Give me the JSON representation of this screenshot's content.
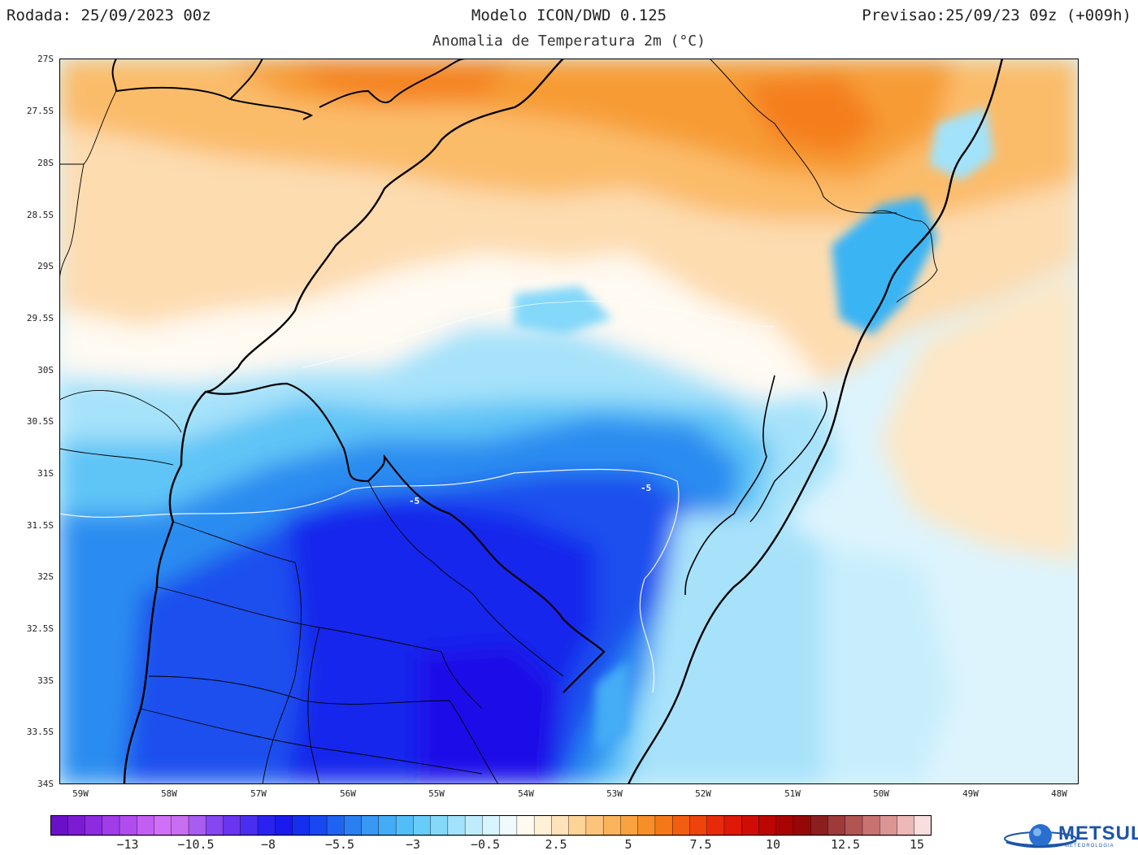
{
  "header": {
    "run": "Rodada: 25/09/2023 00z",
    "model": "Modelo ICON/DWD 0.125",
    "forecast": "Previsao:25/09/23 09z (+009h)",
    "subtitle": "Anomalia de Temperatura 2m (°C)"
  },
  "axes": {
    "lat_labels": [
      "27S",
      "27.5S",
      "28S",
      "28.5S",
      "29S",
      "29.5S",
      "30S",
      "30.5S",
      "31S",
      "31.5S",
      "32S",
      "32.5S",
      "33S",
      "33.5S",
      "34S"
    ],
    "lon_labels": [
      "59W",
      "58W",
      "57W",
      "56W",
      "55W",
      "54W",
      "53W",
      "52W",
      "51W",
      "50W",
      "49W",
      "48W"
    ]
  },
  "contour_labels": [
    "-5",
    "-5"
  ],
  "colorbar": {
    "colors": [
      "#6a10c8",
      "#7c1ad6",
      "#8e2ae0",
      "#a03ce8",
      "#b24cef",
      "#c35ef4",
      "#d070f6",
      "#c86ef0",
      "#a85cf0",
      "#8646f0",
      "#6a34f0",
      "#4a2ef0",
      "#2a22f0",
      "#1a1aee",
      "#1430ee",
      "#1848f0",
      "#1e64f0",
      "#2a80f2",
      "#3898f4",
      "#44acf6",
      "#52bef8",
      "#68ccf8",
      "#84d8fa",
      "#a2e2fb",
      "#bfecfc",
      "#d8f4fd",
      "#eefafe",
      "#fffaf0",
      "#fff0d8",
      "#fee2b8",
      "#fdd398",
      "#fcc47a",
      "#fbb35c",
      "#f9a240",
      "#f78e28",
      "#f57818",
      "#f25e10",
      "#ee440c",
      "#e82a0a",
      "#e01808",
      "#d00c06",
      "#bc0604",
      "#a80404",
      "#960808",
      "#8c1e1e",
      "#9e3a3a",
      "#b25454",
      "#c87272",
      "#dc9494",
      "#ecb8b8",
      "#f8dede"
    ],
    "labels": [
      "−13",
      "−10.5",
      "−8",
      "−5.5",
      "−3",
      "−0.5",
      "2.5",
      "5",
      "7.5",
      "10",
      "12.5",
      "15"
    ]
  },
  "logo": {
    "text": "METSUL",
    "sub": "METEOROLOGIA"
  }
}
